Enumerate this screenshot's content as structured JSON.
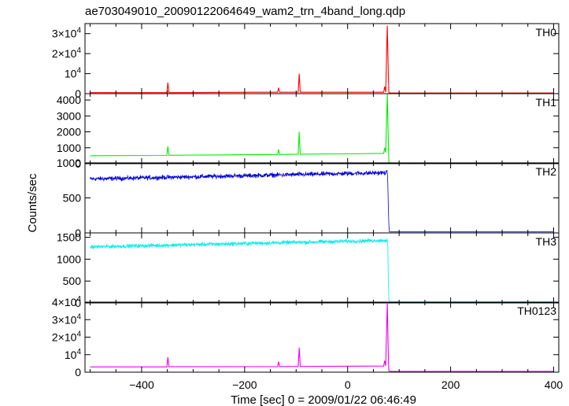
{
  "title": "ae703049010_20090122064649_wam2_trn_4band_long.qdp",
  "ylabel": "Counts/sec",
  "xlabel": "Time [sec] 0 = 2009/01/22 06:46:49",
  "chart_data": [
    {
      "type": "line",
      "name": "TH0",
      "color": "#ff0000",
      "xlim": [
        -510,
        410
      ],
      "ylim": [
        0,
        35000
      ],
      "xticks": [
        -400,
        -200,
        0,
        200,
        400
      ],
      "yticks": [
        {
          "value": 0,
          "label": "0"
        },
        {
          "value": 10000,
          "label": "10⁴",
          "sci": {
            "m": "",
            "e": "4"
          }
        },
        {
          "value": 20000,
          "label": "2×10⁴",
          "sci": {
            "m": "2×",
            "e": "4"
          }
        },
        {
          "value": 30000,
          "label": "3×10⁴",
          "sci": {
            "m": "3×",
            "e": "4"
          }
        }
      ],
      "points": [
        [
          -500,
          500
        ],
        [
          -351,
          500
        ],
        [
          -349,
          5500
        ],
        [
          -347,
          500
        ],
        [
          -180,
          700
        ],
        [
          -136,
          700
        ],
        [
          -134,
          3000
        ],
        [
          -132,
          700
        ],
        [
          -110,
          700
        ],
        [
          -96,
          700
        ],
        [
          -94,
          10000
        ],
        [
          -92,
          700
        ],
        [
          -40,
          700
        ],
        [
          0,
          700
        ],
        [
          70,
          700
        ],
        [
          72,
          3500
        ],
        [
          74,
          800
        ],
        [
          77,
          34000
        ],
        [
          79,
          10000
        ],
        [
          80,
          500
        ],
        [
          82,
          300
        ],
        [
          400,
          300
        ]
      ]
    },
    {
      "type": "line",
      "name": "TH1",
      "color": "#00ee00",
      "xlim": [
        -510,
        410
      ],
      "ylim": [
        0,
        4400
      ],
      "xticks": [
        -400,
        -200,
        0,
        200,
        400
      ],
      "yticks": [
        {
          "value": 0,
          "label": "0"
        },
        {
          "value": 1000,
          "label": "1000"
        },
        {
          "value": 2000,
          "label": "2000"
        },
        {
          "value": 3000,
          "label": "3000"
        },
        {
          "value": 4000,
          "label": "4000"
        }
      ],
      "points": [
        [
          -500,
          500
        ],
        [
          -351,
          520
        ],
        [
          -349,
          1100
        ],
        [
          -347,
          530
        ],
        [
          -136,
          580
        ],
        [
          -134,
          900
        ],
        [
          -132,
          580
        ],
        [
          -96,
          600
        ],
        [
          -94,
          2000
        ],
        [
          -92,
          600
        ],
        [
          0,
          620
        ],
        [
          70,
          650
        ],
        [
          72,
          1000
        ],
        [
          74,
          700
        ],
        [
          77,
          4400
        ],
        [
          79,
          1500
        ],
        [
          80,
          100
        ],
        [
          82,
          50
        ],
        [
          400,
          50
        ]
      ]
    },
    {
      "type": "line",
      "name": "TH2",
      "color": "#0000dd",
      "xlim": [
        -510,
        410
      ],
      "ylim": [
        0,
        1000
      ],
      "xticks": [
        -400,
        -200,
        0,
        200,
        400
      ],
      "yticks": [
        {
          "value": 0,
          "label": "0"
        },
        {
          "value": 500,
          "label": "500"
        },
        {
          "value": 1000,
          "label": "1000"
        }
      ],
      "noise": {
        "from": -500,
        "to": 77,
        "start": 770,
        "end": 860,
        "amp": 35
      },
      "points": [
        [
          -500,
          770
        ],
        [
          77,
          860
        ],
        [
          78,
          700
        ],
        [
          79,
          380
        ],
        [
          80,
          120
        ],
        [
          81,
          20
        ],
        [
          82,
          15
        ],
        [
          400,
          15
        ]
      ]
    },
    {
      "type": "line",
      "name": "TH3",
      "color": "#00eeee",
      "xlim": [
        -510,
        410
      ],
      "ylim": [
        0,
        1600
      ],
      "xticks": [
        -400,
        -200,
        0,
        200,
        400
      ],
      "yticks": [
        {
          "value": 0,
          "label": "0"
        },
        {
          "value": 500,
          "label": "500"
        },
        {
          "value": 1000,
          "label": "1000"
        },
        {
          "value": 1500,
          "label": "1500"
        }
      ],
      "noise": {
        "from": -500,
        "to": 77,
        "start": 1280,
        "end": 1430,
        "amp": 50
      },
      "points": [
        [
          -500,
          1280
        ],
        [
          77,
          1430
        ],
        [
          78,
          1300
        ],
        [
          79,
          550
        ],
        [
          80,
          80
        ],
        [
          81,
          30
        ],
        [
          82,
          25
        ],
        [
          400,
          25
        ]
      ]
    },
    {
      "type": "line",
      "name": "TH0123",
      "color": "#ee00ee",
      "xlim": [
        -510,
        410
      ],
      "ylim": [
        0,
        40000
      ],
      "xticks": [
        -400,
        -200,
        0,
        200,
        400
      ],
      "yticks": [
        {
          "value": 0,
          "label": "0"
        },
        {
          "value": 10000,
          "label": "10⁴",
          "sci": {
            "m": "",
            "e": "4"
          }
        },
        {
          "value": 20000,
          "label": "2×10⁴",
          "sci": {
            "m": "2×",
            "e": "4"
          }
        },
        {
          "value": 30000,
          "label": "3×10⁴",
          "sci": {
            "m": "3×",
            "e": "4"
          }
        },
        {
          "value": 40000,
          "label": "4×10⁴",
          "sci": {
            "m": "4×",
            "e": "4"
          }
        }
      ],
      "points": [
        [
          -500,
          3000
        ],
        [
          -351,
          3000
        ],
        [
          -349,
          8500
        ],
        [
          -347,
          3100
        ],
        [
          -136,
          3200
        ],
        [
          -134,
          6000
        ],
        [
          -132,
          3200
        ],
        [
          -96,
          3300
        ],
        [
          -94,
          14000
        ],
        [
          -92,
          3300
        ],
        [
          0,
          3400
        ],
        [
          70,
          3500
        ],
        [
          72,
          6500
        ],
        [
          74,
          3600
        ],
        [
          77,
          40000
        ],
        [
          79,
          10000
        ],
        [
          80,
          800
        ],
        [
          82,
          400
        ],
        [
          400,
          400
        ]
      ]
    }
  ]
}
